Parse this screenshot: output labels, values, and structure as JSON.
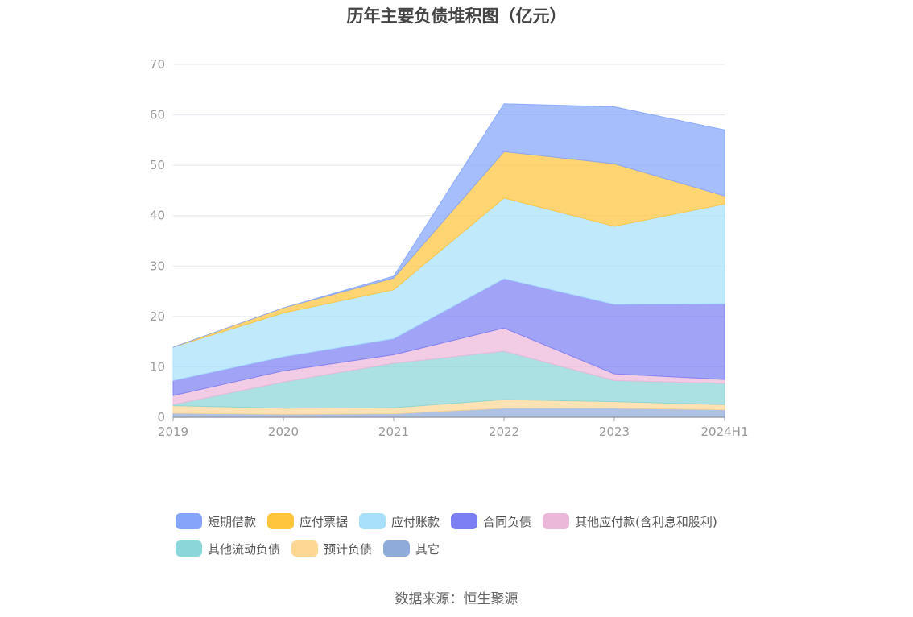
{
  "chart_data": {
    "type": "area",
    "stacked": true,
    "title": "历年主要负债堆积图（亿元）",
    "xlabel": "",
    "ylabel": "",
    "categories": [
      "2019",
      "2020",
      "2021",
      "2022",
      "2023",
      "2024H1"
    ],
    "ylim": [
      0,
      70
    ],
    "yticks": [
      0,
      10,
      20,
      30,
      40,
      50,
      60,
      70
    ],
    "grid": true,
    "legend_position": "bottom",
    "series": [
      {
        "name": "其它",
        "color": "#8fabd9",
        "values": [
          0.8,
          0.6,
          0.7,
          1.8,
          1.8,
          1.5
        ]
      },
      {
        "name": "预计负债",
        "color": "#ffd795",
        "values": [
          1.5,
          1.2,
          1.2,
          1.7,
          1.3,
          1.0
        ]
      },
      {
        "name": "其他流动负债",
        "color": "#8bd6d8",
        "values": [
          0.2,
          5.2,
          8.8,
          9.6,
          4.2,
          4.2
        ]
      },
      {
        "name": "其他应付款(含利息和股利)",
        "color": "#ebb8d9",
        "values": [
          1.8,
          2.2,
          1.7,
          4.6,
          1.3,
          0.8
        ]
      },
      {
        "name": "合同负债",
        "color": "#7b7ff2",
        "values": [
          3.0,
          2.8,
          3.2,
          9.8,
          13.8,
          15.0
        ]
      },
      {
        "name": "应付账款",
        "color": "#a8e0fb",
        "values": [
          6.6,
          8.7,
          9.7,
          16.0,
          15.5,
          19.8
        ]
      },
      {
        "name": "应付票据",
        "color": "#ffc53d",
        "values": [
          0.0,
          1.0,
          2.3,
          9.2,
          12.4,
          1.6
        ]
      },
      {
        "name": "短期借款",
        "color": "#85a5fb",
        "values": [
          0.0,
          0.0,
          0.4,
          9.5,
          11.3,
          13.1
        ]
      }
    ]
  },
  "legend": {
    "rows": [
      [
        {
          "label": "短期借款",
          "color": "#85a5fb"
        },
        {
          "label": "应付票据",
          "color": "#ffc53d"
        },
        {
          "label": "应付账款",
          "color": "#a8e0fb"
        },
        {
          "label": "合同负债",
          "color": "#7b7ff2"
        },
        {
          "label": "其他应付款(含利息和股利)",
          "color": "#ebb8d9"
        }
      ],
      [
        {
          "label": "其他流动负债",
          "color": "#8bd6d8"
        },
        {
          "label": "预计负债",
          "color": "#ffd795"
        },
        {
          "label": "其它",
          "color": "#8fabd9"
        }
      ]
    ]
  },
  "source": "数据来源：恒生聚源"
}
